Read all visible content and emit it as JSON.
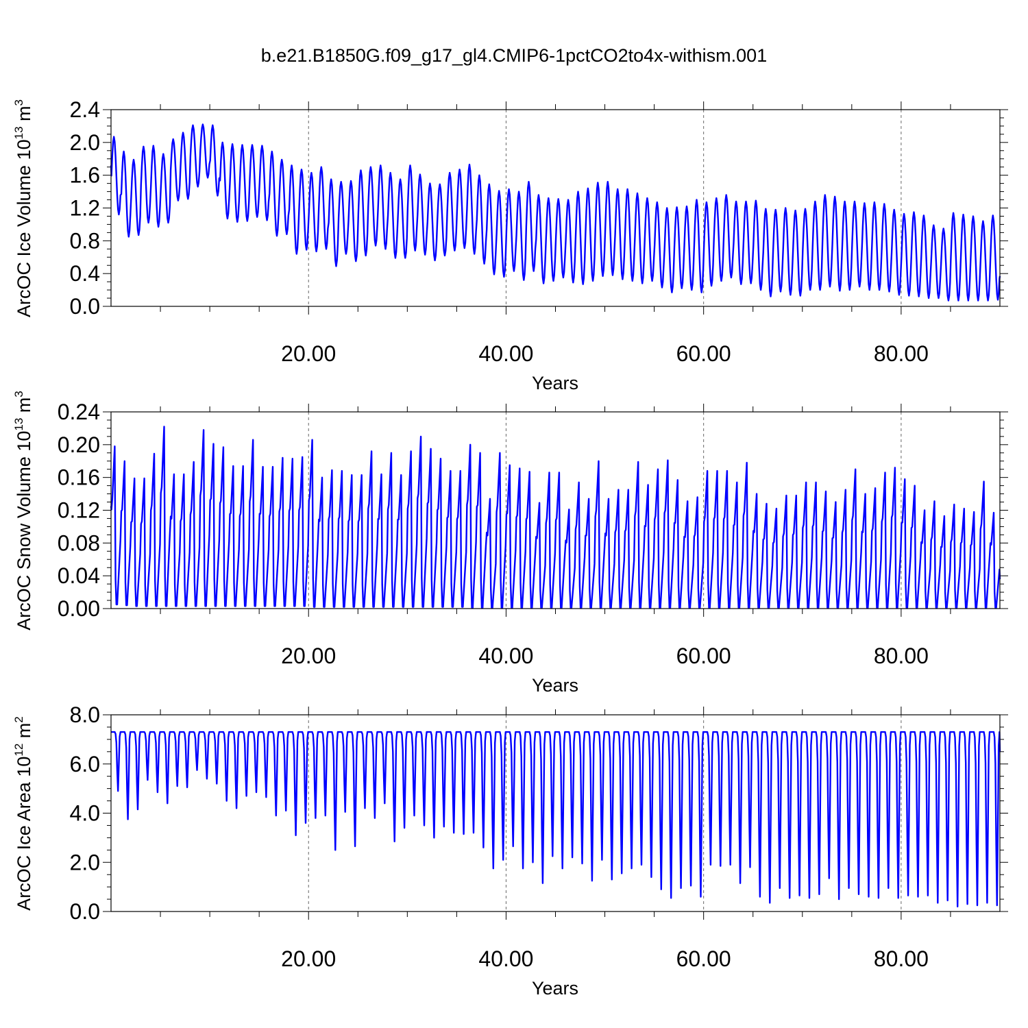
{
  "title": "b.e21.B1850G.f09_g17_gl4.CMIP6-1pctCO2to4x-withism.001",
  "colors": {
    "series": "#0000ff",
    "axes": "#000000",
    "grid": "#666666"
  },
  "chart_data": [
    {
      "type": "line",
      "title": "b.e21.B1850G.f09_g17_gl4.CMIP6-1pctCO2to4x-withism.001",
      "xlabel": "Years",
      "ylabel": "ArcOC Ice Volume 10",
      "ylabel_exp": "13",
      "ylabel_unit": " m",
      "ylabel_unit_exp": "3",
      "xlim": [
        0,
        90
      ],
      "ylim": [
        0,
        2.4
      ],
      "xticks": [
        20,
        40,
        60,
        80
      ],
      "xtick_labels": [
        "20.00",
        "40.00",
        "60.00",
        "80.00"
      ],
      "yticks": [
        0,
        0.4,
        0.8,
        1.2,
        1.6,
        2.0,
        2.4
      ],
      "ytick_labels": [
        "0.0",
        "0.4",
        "0.8",
        "1.2",
        "1.6",
        "2.0",
        "2.4"
      ],
      "grid": "dashed vertical at x ticks",
      "annual_max": [
        2.07,
        1.89,
        1.79,
        1.95,
        1.96,
        1.86,
        2.04,
        2.12,
        2.21,
        2.22,
        2.21,
        2.0,
        1.98,
        1.97,
        1.97,
        1.96,
        1.89,
        1.79,
        1.72,
        1.67,
        1.63,
        1.7,
        1.55,
        1.52,
        1.53,
        1.66,
        1.7,
        1.72,
        1.63,
        1.55,
        1.72,
        1.61,
        1.5,
        1.49,
        1.63,
        1.67,
        1.73,
        1.6,
        1.49,
        1.41,
        1.43,
        1.4,
        1.52,
        1.36,
        1.32,
        1.31,
        1.3,
        1.4,
        1.44,
        1.51,
        1.52,
        1.43,
        1.43,
        1.38,
        1.32,
        1.27,
        1.2,
        1.21,
        1.22,
        1.3,
        1.27,
        1.32,
        1.36,
        1.28,
        1.28,
        1.29,
        1.19,
        1.18,
        1.2,
        1.17,
        1.19,
        1.28,
        1.36,
        1.34,
        1.28,
        1.28,
        1.26,
        1.27,
        1.25,
        1.18,
        1.13,
        1.15,
        1.11,
        0.99,
        0.95,
        1.14,
        1.12,
        1.1,
        1.04,
        1.11
      ],
      "annual_min": [
        1.12,
        0.85,
        0.87,
        1.02,
        0.97,
        1.02,
        1.29,
        1.31,
        1.46,
        1.57,
        1.35,
        1.07,
        1.03,
        1.04,
        1.09,
        1.05,
        0.86,
        0.88,
        0.64,
        0.69,
        0.67,
        0.7,
        0.49,
        0.64,
        0.55,
        0.62,
        0.74,
        0.7,
        0.59,
        0.59,
        0.68,
        0.63,
        0.56,
        0.62,
        0.68,
        0.71,
        0.64,
        0.52,
        0.39,
        0.36,
        0.43,
        0.32,
        0.43,
        0.28,
        0.31,
        0.35,
        0.29,
        0.27,
        0.31,
        0.37,
        0.38,
        0.33,
        0.31,
        0.28,
        0.31,
        0.23,
        0.17,
        0.22,
        0.2,
        0.17,
        0.25,
        0.31,
        0.35,
        0.27,
        0.28,
        0.2,
        0.12,
        0.18,
        0.14,
        0.13,
        0.2,
        0.2,
        0.24,
        0.19,
        0.2,
        0.24,
        0.2,
        0.2,
        0.18,
        0.14,
        0.13,
        0.12,
        0.1,
        0.1,
        0.07,
        0.07,
        0.07,
        0.07,
        0.07,
        0.08
      ],
      "series": [
        {
          "values_ref": "annual_max/annual_min monthly cycle"
        }
      ]
    },
    {
      "type": "line",
      "xlabel": "Years",
      "ylabel": "ArcOC Snow Volume 10",
      "ylabel_exp": "13",
      "ylabel_unit": " m",
      "ylabel_unit_exp": "3",
      "xlim": [
        0,
        90
      ],
      "ylim": [
        0,
        0.24
      ],
      "xticks": [
        20,
        40,
        60,
        80
      ],
      "xtick_labels": [
        "20.00",
        "40.00",
        "60.00",
        "80.00"
      ],
      "yticks": [
        0,
        0.04,
        0.08,
        0.12,
        0.16,
        0.2,
        0.24
      ],
      "ytick_labels": [
        "0.00",
        "0.04",
        "0.08",
        "0.12",
        "0.16",
        "0.20",
        "0.24"
      ],
      "grid": "dashed vertical at x ticks",
      "annual_max": [
        0.198,
        0.18,
        0.159,
        0.159,
        0.189,
        0.222,
        0.164,
        0.164,
        0.179,
        0.218,
        0.201,
        0.197,
        0.174,
        0.174,
        0.206,
        0.173,
        0.173,
        0.184,
        0.183,
        0.185,
        0.206,
        0.16,
        0.169,
        0.168,
        0.163,
        0.163,
        0.192,
        0.164,
        0.19,
        0.163,
        0.192,
        0.21,
        0.195,
        0.183,
        0.168,
        0.168,
        0.2,
        0.19,
        0.134,
        0.19,
        0.175,
        0.171,
        0.167,
        0.129,
        0.166,
        0.166,
        0.121,
        0.154,
        0.134,
        0.18,
        0.134,
        0.145,
        0.145,
        0.179,
        0.151,
        0.17,
        0.181,
        0.157,
        0.131,
        0.136,
        0.168,
        0.168,
        0.168,
        0.154,
        0.178,
        0.14,
        0.128,
        0.122,
        0.138,
        0.138,
        0.154,
        0.154,
        0.143,
        0.13,
        0.145,
        0.17,
        0.14,
        0.147,
        0.166,
        0.172,
        0.158,
        0.15,
        0.12,
        0.131,
        0.113,
        0.127,
        0.122,
        0.118,
        0.155,
        0.117
      ],
      "annual_min": [
        0.005,
        0.004,
        0.003,
        0.003,
        0.003,
        0.003,
        0.003,
        0.003,
        0.003,
        0.003,
        0.003,
        0.003,
        0.003,
        0.003,
        0.003,
        0.003,
        0.003,
        0.003,
        0.003,
        0.003,
        0.002,
        0.002,
        0.002,
        0.002,
        0.002,
        0.002,
        0.002,
        0.002,
        0.002,
        0.002,
        0.002,
        0.002,
        0.002,
        0.002,
        0.002,
        0.002,
        0.001,
        0.001,
        0.001,
        0.001,
        0.001,
        0.001,
        0.001,
        0.001,
        0.001,
        0.001,
        0.001,
        0.001,
        0.001,
        0.001,
        0.001,
        0.001,
        0.001,
        0.001,
        0.001,
        0.001,
        0.001,
        0.001,
        0.001,
        0.001,
        0.001,
        0.001,
        0.001,
        0.001,
        0.001,
        0.001,
        0.001,
        0.001,
        0.001,
        0.001,
        0.001,
        0.001,
        0.001,
        0.001,
        0.001,
        0.001,
        0.001,
        0.001,
        0.001,
        0.001,
        0.001,
        0.001,
        0.001,
        0.001,
        0.001,
        0.001,
        0.001,
        0.001,
        0.001,
        0.001
      ],
      "series": [
        {
          "values_ref": "annual_max/annual_min sawtooth cycle"
        }
      ]
    },
    {
      "type": "line",
      "xlabel": "Years",
      "ylabel": "ArcOC Ice Area 10",
      "ylabel_exp": "12",
      "ylabel_unit": " m",
      "ylabel_unit_exp": "2",
      "xlim": [
        0,
        90
      ],
      "ylim": [
        0,
        8.0
      ],
      "xticks": [
        20,
        40,
        60,
        80
      ],
      "xtick_labels": [
        "20.00",
        "40.00",
        "60.00",
        "80.00"
      ],
      "yticks": [
        0,
        2.0,
        4.0,
        6.0,
        8.0
      ],
      "ytick_labels": [
        "0.0",
        "2.0",
        "4.0",
        "6.0",
        "8.0"
      ],
      "grid": "dashed vertical at x ticks",
      "annual_max": [
        7.3,
        7.3,
        7.3,
        7.3,
        7.3,
        7.3,
        7.3,
        7.3,
        7.3,
        7.3,
        7.3,
        7.3,
        7.3,
        7.3,
        7.3,
        7.3,
        7.3,
        7.3,
        7.3,
        7.3,
        7.3,
        7.3,
        7.3,
        7.3,
        7.3,
        7.3,
        7.3,
        7.3,
        7.3,
        7.3,
        7.3,
        7.3,
        7.3,
        7.3,
        7.3,
        7.3,
        7.3,
        7.3,
        7.3,
        7.3,
        7.3,
        7.3,
        7.3,
        7.3,
        7.3,
        7.3,
        7.3,
        7.3,
        7.3,
        7.3,
        7.3,
        7.3,
        7.3,
        7.3,
        7.3,
        7.3,
        7.3,
        7.3,
        7.3,
        7.3,
        7.3,
        7.3,
        7.3,
        7.3,
        7.3,
        7.3,
        7.3,
        7.3,
        7.3,
        7.3,
        7.3,
        7.3,
        7.3,
        7.3,
        7.3,
        7.3,
        7.3,
        7.3,
        7.3,
        7.3,
        7.3,
        7.3,
        7.3,
        7.3,
        7.3,
        7.3,
        7.3,
        7.3,
        7.3,
        7.3
      ],
      "annual_min": [
        4.9,
        3.75,
        4.15,
        5.35,
        4.85,
        4.4,
        5.1,
        5.05,
        5.75,
        5.4,
        5.2,
        4.5,
        4.2,
        4.7,
        4.85,
        4.65,
        3.9,
        4.1,
        3.1,
        3.6,
        3.8,
        3.9,
        2.5,
        4.05,
        2.65,
        4.2,
        3.8,
        4.4,
        2.85,
        3.4,
        3.9,
        3.5,
        3.0,
        3.45,
        3.2,
        3.15,
        3.2,
        2.6,
        1.75,
        2.1,
        2.65,
        1.75,
        2.0,
        1.15,
        2.25,
        1.75,
        2.2,
        1.95,
        1.25,
        2.1,
        1.3,
        1.55,
        1.75,
        1.9,
        1.4,
        0.9,
        0.55,
        0.95,
        1.05,
        0.6,
        1.9,
        1.85,
        1.9,
        1.15,
        1.8,
        0.6,
        0.35,
        0.95,
        0.55,
        0.65,
        0.55,
        0.7,
        1.35,
        0.5,
        0.95,
        0.7,
        0.6,
        0.55,
        0.95,
        0.55,
        0.65,
        0.6,
        0.65,
        0.35,
        0.45,
        0.2,
        0.3,
        0.25,
        0.35,
        0.25
      ],
      "series": [
        {
          "values_ref": "annual_max/annual_min monthly cycle"
        }
      ]
    }
  ]
}
